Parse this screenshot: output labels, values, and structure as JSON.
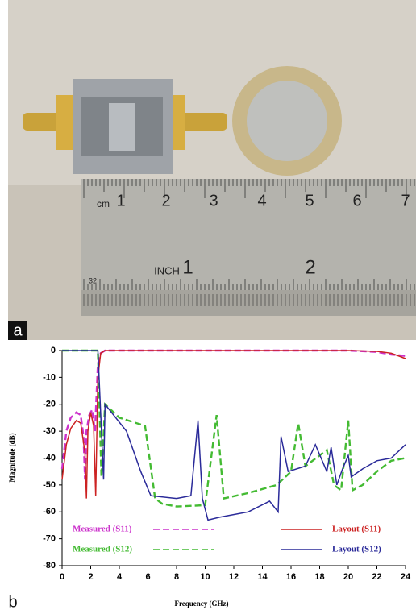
{
  "panel_labels": [
    "a",
    "b"
  ],
  "photo": {
    "ruler_cm_unit": "cm",
    "ruler_cm": [
      "1",
      "2",
      "3",
      "4",
      "5",
      "6",
      "7"
    ],
    "ruler_inch_unit": "INCH",
    "ruler_inch": [
      "1",
      "2"
    ],
    "ruler_edge": "32"
  },
  "chart_data": {
    "type": "line",
    "x_label": "Frequency (GHz)",
    "y_label": "Magnitude (dB)",
    "xlim": [
      0,
      24
    ],
    "xticks": [
      0,
      2,
      4,
      6,
      8,
      10,
      12,
      14,
      16,
      18,
      20,
      22,
      24
    ],
    "ylim": [
      -80,
      0
    ],
    "yticks": [
      -80,
      -70,
      -60,
      -50,
      -40,
      -30,
      -20,
      -10,
      0
    ],
    "series": [
      {
        "name": "Measured (S11)",
        "color": "#cc33cc",
        "dash": true,
        "x": [
          0,
          0.3,
          0.6,
          1.0,
          1.3,
          1.5,
          1.6,
          1.7,
          1.9,
          2.1,
          2.3,
          2.5,
          2.7,
          3,
          10,
          20,
          22,
          23,
          24
        ],
        "values": [
          -44,
          -30,
          -25,
          -23,
          -24,
          -32,
          -48,
          -30,
          -24,
          -22,
          -30,
          -5,
          -1,
          0,
          0,
          0,
          -0.5,
          -1.5,
          -2
        ]
      },
      {
        "name": "Measured (S12)",
        "color": "#44bb33",
        "dash": true,
        "x": [
          0,
          2.5,
          2.75,
          3,
          4,
          5.8,
          6.5,
          7,
          8,
          10,
          10.8,
          11.3,
          13,
          15,
          16,
          16.5,
          17,
          18.5,
          19,
          19.5,
          20,
          20.3,
          21,
          22,
          23,
          24
        ],
        "values": [
          0,
          0,
          -47,
          -20,
          -25,
          -28,
          -55,
          -57,
          -58,
          -57.5,
          -24,
          -55,
          -53,
          -50,
          -45,
          -27,
          -43,
          -37,
          -50,
          -52,
          -26,
          -52,
          -50,
          -45,
          -41,
          -40
        ]
      },
      {
        "name": "Layout (S11)",
        "color": "#cc2222",
        "dash": false,
        "x": [
          0,
          0.3,
          0.6,
          1.0,
          1.3,
          1.6,
          1.7,
          1.8,
          2.0,
          2.2,
          2.35,
          2.5,
          2.7,
          3,
          6,
          10,
          15,
          20,
          22,
          23,
          24
        ],
        "values": [
          -48,
          -35,
          -29,
          -26,
          -27,
          -38,
          -55,
          -30,
          -23,
          -28,
          -54,
          -10,
          -1,
          0,
          0,
          0,
          0,
          0,
          -0.3,
          -1,
          -3
        ]
      },
      {
        "name": "Layout (S12)",
        "color": "#2a2a99",
        "dash": false,
        "x": [
          0,
          2.5,
          2.9,
          3,
          4.5,
          5.5,
          6.2,
          8,
          9,
          9.5,
          9.8,
          10.2,
          11,
          13,
          14.5,
          15.1,
          15.3,
          15.8,
          17,
          17.7,
          18.5,
          18.8,
          19.2,
          19.6,
          20,
          20.2,
          21,
          22,
          23,
          24
        ],
        "values": [
          0,
          0,
          -48,
          -20,
          -30,
          -45,
          -54,
          -55,
          -54,
          -26,
          -55,
          -63,
          -62,
          -60,
          -56,
          -60,
          -32,
          -45,
          -43,
          -35,
          -45,
          -36,
          -50,
          -44,
          -39,
          -47,
          -44,
          -41,
          -40,
          -35
        ]
      }
    ]
  }
}
